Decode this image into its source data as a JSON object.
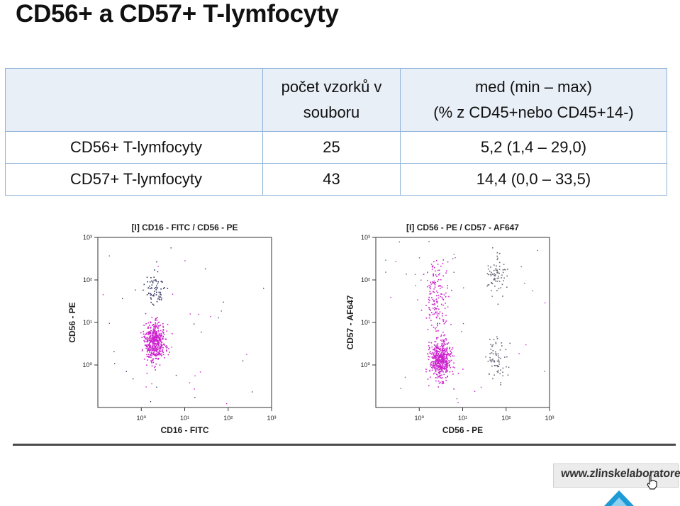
{
  "title": "CD56+ a CD57+ T-lymfocyty",
  "table": {
    "headers": [
      "",
      "počet vzorků v souboru",
      "med (min – max) (% z CD45+nebo CD45+14-)"
    ],
    "header_lines": {
      "col2": [
        "počet vzorků v",
        "souboru"
      ],
      "col3": [
        "med (min – max)",
        "(% z CD45+nebo CD45+14-)"
      ]
    },
    "rows": [
      {
        "label": "CD56+ T-lymfocyty",
        "count": "25",
        "median": "5,2 (1,4 – 29,0)"
      },
      {
        "label": "CD57+ T-lymfocyty",
        "count": "43",
        "median": "14,4 (0,0 – 33,5)"
      }
    ]
  },
  "chart_data": [
    {
      "type": "scatter",
      "title": "[I] CD16 - FITC / CD56 - PE",
      "xlabel": "CD16 - FITC",
      "ylabel": "CD56 - PE",
      "x_ticks": [
        "10⁰",
        "10¹",
        "10²",
        "10³"
      ],
      "y_ticks": [
        "10⁰",
        "10¹",
        "10²",
        "10³"
      ],
      "scale": "log",
      "xlim": [
        0.1,
        1000
      ],
      "ylim": [
        0.1,
        1000
      ],
      "grid": false,
      "series": [
        {
          "color": "#cc22cc",
          "clusters": [
            {
              "x_center": 2.0,
              "y_center": 3.5,
              "spread": "dense"
            }
          ]
        },
        {
          "color": "#3a3a66",
          "clusters": [
            {
              "x_center": 2.0,
              "y_center": 60,
              "spread": "sparse"
            }
          ]
        }
      ]
    },
    {
      "type": "scatter",
      "title": "[I] CD56 - PE / CD57 - AF647",
      "xlabel": "CD56 - PE",
      "ylabel": "CD57 - AF647",
      "x_ticks": [
        "10⁰",
        "10¹",
        "10²",
        "10³"
      ],
      "y_ticks": [
        "10⁰",
        "10¹",
        "10²",
        "10³"
      ],
      "scale": "log",
      "xlim": [
        0.1,
        1000
      ],
      "ylim": [
        0.1,
        1000
      ],
      "grid": false,
      "series": [
        {
          "color": "#cc22cc",
          "clusters": [
            {
              "x_center": 3.0,
              "y_center": 1.3,
              "spread": "dense"
            },
            {
              "x_center": 2.5,
              "y_center": 40,
              "spread": "vertical"
            }
          ]
        },
        {
          "color": "#666677",
          "clusters": [
            {
              "x_center": 60,
              "y_center": 1.5,
              "spread": "sparse"
            },
            {
              "x_center": 60,
              "y_center": 150,
              "spread": "sparse"
            }
          ]
        }
      ]
    }
  ],
  "footer": {
    "site": "www.zlinskelaboratore.cz",
    "icons": [
      "hand-pointer-icon",
      "chevron-up-icon"
    ],
    "accent": "#1e9ad6"
  }
}
